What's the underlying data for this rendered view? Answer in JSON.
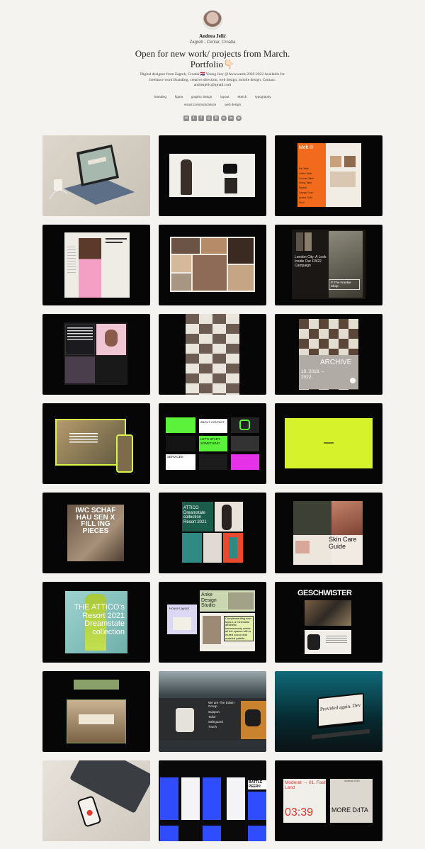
{
  "profile": {
    "name": "Andrea Jelić",
    "location": "Zagreb - Centar, Croatia",
    "headline_line1": "Open for new work/ projects from March.",
    "headline_line2": "Portfolio👇🏻",
    "bio": "Digital designer from Zagreb, Croatia 🇭🇷 Young Jury @Awwwards 2020-2022 Available for freelance work Branding, creative direction, web design, mobile design. Contact: andreajelic@gmail.com"
  },
  "tags": [
    "branding",
    "figma",
    "graphic design",
    "layout",
    "sketch",
    "typography",
    "visual communications",
    "web design"
  ],
  "social_icons": [
    "email-icon",
    "twitter-icon",
    "facebook-icon",
    "instagram-icon",
    "behance-icon",
    "spotify-icon",
    "linkedin-icon",
    "dribbble-icon"
  ],
  "projects": {
    "melt_title": "Melt ®",
    "melt_items": [
      "Bar Table",
      "Coffee Table",
      "Console Table",
      "Dining Table",
      "Daybed",
      "Lounge Chair",
      "Accent Chair",
      "Stool"
    ],
    "london_title": "London City: A Look Inside Our FW22 Campaign",
    "frankie_label": "® The Frankie Shop",
    "archive_title": "ARCHIVE",
    "archive_dates": "10. 2018. – 2022.",
    "services_label": "SERVICES",
    "about_label": "ABOUT CONTACT",
    "letstart_label": "LET'S START SOMETHING",
    "iwc_text": "IWC SCHAF HAU SEN X FILL ING PIECES",
    "attico_small": "ATTICO Dreamstate collection Resort 2021",
    "skincare_title": "Skin Care Guide",
    "attico_title": "THE ATTICO's Resort 2021 Dreamstate collection",
    "anke_title": "Anke Design Studio",
    "house_label": "House Layout",
    "anke_text": "Complementing new layout, a minimalist aesthetic harmoniously unites all the spaces with a muted colour and material palette.",
    "geschwister_title": "GESCHWISTER",
    "edwin_title": "We are The Edwin Group",
    "edwin_list": [
      "Support",
      "Tailor",
      "Safeguard",
      "Touch"
    ],
    "provided_title": "Provided again. Dev",
    "battle_title": "BATTLE PEER®",
    "moderat_title": "Moderat → 01. Fast Land",
    "moderat_time": "03:39",
    "moredata_title": "MORE D4TA",
    "moredata_small": "moderat 2019"
  },
  "colors": {
    "background": "#f4f3ef",
    "tile": "#060606",
    "lime": "#d6f22a",
    "orange": "#f26b1d",
    "pink": "#f3a0c4",
    "red": "#e3362b",
    "teal": "#3aa9a1",
    "blue": "#2f4dff"
  }
}
